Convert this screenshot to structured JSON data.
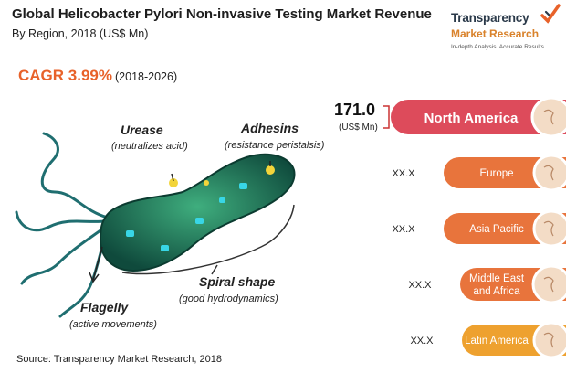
{
  "header": {
    "title": "Global Helicobacter Pylori Non-invasive Testing Market Revenue",
    "subtitle": "By Region, 2018 (US$ Mn)"
  },
  "logo": {
    "line1": "Transparency",
    "line2": "Market Research",
    "tagline": "In-depth Analysis. Accurate Results"
  },
  "cagr": {
    "label": "CAGR 3.99%",
    "period": "(2018-2026)"
  },
  "illustration": {
    "labels": [
      {
        "name": "Urease",
        "note": "(neutralizes acid)"
      },
      {
        "name": "Adhesins",
        "note": "(resistance peristalsis)"
      },
      {
        "name": "Spiral shape",
        "note": "(good hydrodynamics)"
      },
      {
        "name": "Flagelly",
        "note": "(active movements)"
      }
    ]
  },
  "chart_data": {
    "type": "bar",
    "title": "Global Helicobacter Pylori Non-invasive Testing Market Revenue",
    "subtitle": "By Region, 2018 (US$ Mn)",
    "categories": [
      "North America",
      "Europe",
      "Asia Pacific",
      "Middle East and Africa",
      "Latin America"
    ],
    "category_lines": [
      [
        "North America"
      ],
      [
        "Europe"
      ],
      [
        "Asia Pacific"
      ],
      [
        "Middle East",
        "and Africa"
      ],
      [
        "Latin America"
      ]
    ],
    "value_labels": [
      "171.0",
      "XX.X",
      "XX.X",
      "XX.X",
      "XX.X"
    ],
    "values": [
      171.0,
      null,
      null,
      null,
      null
    ],
    "unit": "(US$ Mn)",
    "colors": [
      "#dd4b5b",
      "#e8743c",
      "#e8743c",
      "#e8743c",
      "#eea12f"
    ],
    "leader_color": "#cc3333"
  },
  "source": "Source: Transparency Market Research, 2018"
}
